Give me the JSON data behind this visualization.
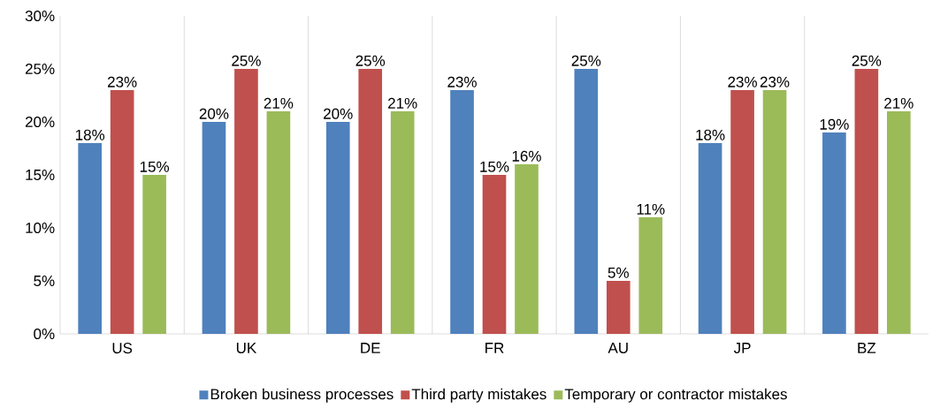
{
  "chart_data": {
    "type": "bar",
    "categories": [
      "US",
      "UK",
      "DE",
      "FR",
      "AU",
      "JP",
      "BZ"
    ],
    "series": [
      {
        "name": "Broken business processes",
        "color": "#4f81bd",
        "values": [
          18,
          20,
          20,
          23,
          25,
          18,
          19
        ],
        "value_labels": [
          "18%",
          "20%",
          "20%",
          "23%",
          "25%",
          "18%",
          "19%"
        ]
      },
      {
        "name": "Third party mistakes",
        "color": "#c0504d",
        "values": [
          23,
          25,
          25,
          15,
          5,
          23,
          25
        ],
        "value_labels": [
          "23%",
          "25%",
          "25%",
          "15%",
          "5%",
          "23%",
          "25%"
        ]
      },
      {
        "name": "Temporary or contractor mistakes",
        "color": "#9bbb59",
        "values": [
          15,
          21,
          21,
          16,
          11,
          23,
          21
        ],
        "value_labels": [
          "15%",
          "21%",
          "21%",
          "16%",
          "11%",
          "23%",
          "21%"
        ]
      }
    ],
    "ylim": [
      0,
      30
    ],
    "yticks": [
      {
        "value": 0,
        "label": "0%"
      },
      {
        "value": 5,
        "label": "5%"
      },
      {
        "value": 10,
        "label": "10%"
      },
      {
        "value": 15,
        "label": "15%"
      },
      {
        "value": 20,
        "label": "20%"
      },
      {
        "value": 25,
        "label": "25%"
      },
      {
        "value": 30,
        "label": "30%"
      }
    ],
    "grid": "x",
    "legend": "bottom"
  }
}
